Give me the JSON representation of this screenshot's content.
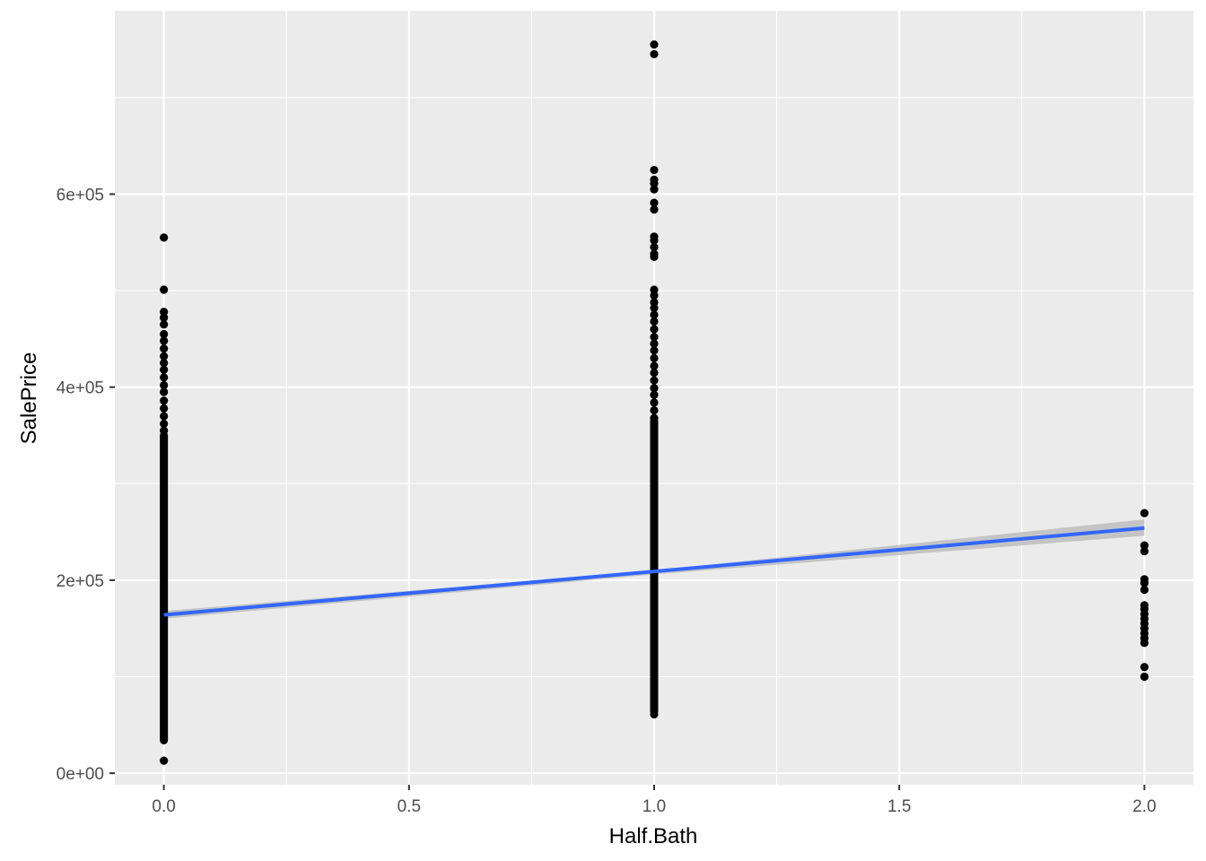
{
  "chart_data": {
    "type": "scatter",
    "xlabel": "Half.Bath",
    "ylabel": "SalePrice",
    "xlim": [
      -0.1,
      2.1
    ],
    "ylim": [
      -12000,
      790000
    ],
    "x_ticks": [
      0.0,
      0.5,
      1.0,
      1.5,
      2.0
    ],
    "x_tick_labels": [
      "0.0",
      "0.5",
      "1.0",
      "1.5",
      "2.0"
    ],
    "y_ticks": [
      0,
      200000,
      400000,
      600000
    ],
    "y_tick_labels": [
      "0e+00",
      "2e+05",
      "4e+05",
      "6e+05"
    ],
    "grid": true,
    "colors": {
      "panel": "#ebebeb",
      "grid": "#ffffff",
      "points": "#000000",
      "line": "#3366ff",
      "ribbon": "#bdbdbd"
    },
    "points": [
      {
        "x": 0,
        "y": 555000
      },
      {
        "x": 0,
        "y": 501000
      },
      {
        "x": 0,
        "y": 478000
      },
      {
        "x": 0,
        "y": 472000
      },
      {
        "x": 0,
        "y": 465000
      },
      {
        "x": 0,
        "y": 455000
      },
      {
        "x": 0,
        "y": 448000
      },
      {
        "x": 0,
        "y": 440000
      },
      {
        "x": 0,
        "y": 432000
      },
      {
        "x": 0,
        "y": 425000
      },
      {
        "x": 0,
        "y": 418000
      },
      {
        "x": 0,
        "y": 410000
      },
      {
        "x": 0,
        "y": 402000
      },
      {
        "x": 0,
        "y": 395000
      },
      {
        "x": 0,
        "y": 386000
      },
      {
        "x": 0,
        "y": 378000
      },
      {
        "x": 0,
        "y": 370000
      },
      {
        "x": 0,
        "y": 362000
      },
      {
        "x": 0,
        "y": 355000
      },
      {
        "x": 0,
        "y": 13000
      },
      {
        "x": 1,
        "y": 755000
      },
      {
        "x": 1,
        "y": 745000
      },
      {
        "x": 1,
        "y": 625000
      },
      {
        "x": 1,
        "y": 615000
      },
      {
        "x": 1,
        "y": 611000
      },
      {
        "x": 1,
        "y": 605000
      },
      {
        "x": 1,
        "y": 591000
      },
      {
        "x": 1,
        "y": 584000
      },
      {
        "x": 1,
        "y": 556000
      },
      {
        "x": 1,
        "y": 552000
      },
      {
        "x": 1,
        "y": 545000
      },
      {
        "x": 1,
        "y": 538000
      },
      {
        "x": 1,
        "y": 535000
      },
      {
        "x": 1,
        "y": 501000
      },
      {
        "x": 1,
        "y": 495000
      },
      {
        "x": 1,
        "y": 488000
      },
      {
        "x": 1,
        "y": 482000
      },
      {
        "x": 1,
        "y": 475000
      },
      {
        "x": 1,
        "y": 468000
      },
      {
        "x": 1,
        "y": 460000
      },
      {
        "x": 1,
        "y": 452000
      },
      {
        "x": 1,
        "y": 445000
      },
      {
        "x": 1,
        "y": 438000
      },
      {
        "x": 1,
        "y": 430000
      },
      {
        "x": 1,
        "y": 422000
      },
      {
        "x": 1,
        "y": 415000
      },
      {
        "x": 1,
        "y": 407000
      },
      {
        "x": 1,
        "y": 399000
      },
      {
        "x": 1,
        "y": 392000
      },
      {
        "x": 1,
        "y": 384000
      },
      {
        "x": 1,
        "y": 376000
      },
      {
        "x": 1,
        "y": 368000
      },
      {
        "x": 1,
        "y": 61000
      },
      {
        "x": 2,
        "y": 269500
      },
      {
        "x": 2,
        "y": 236000
      },
      {
        "x": 2,
        "y": 230000
      },
      {
        "x": 2,
        "y": 201000
      },
      {
        "x": 2,
        "y": 197000
      },
      {
        "x": 2,
        "y": 190000
      },
      {
        "x": 2,
        "y": 174000
      },
      {
        "x": 2,
        "y": 170000
      },
      {
        "x": 2,
        "y": 165000
      },
      {
        "x": 2,
        "y": 160000
      },
      {
        "x": 2,
        "y": 155000
      },
      {
        "x": 2,
        "y": 150000
      },
      {
        "x": 2,
        "y": 145000
      },
      {
        "x": 2,
        "y": 140000
      },
      {
        "x": 2,
        "y": 135000
      },
      {
        "x": 2,
        "y": 110000
      },
      {
        "x": 2,
        "y": 100000
      }
    ],
    "dense_ranges": [
      {
        "x": 0,
        "y_min": 34000,
        "y_max": 350000
      },
      {
        "x": 1,
        "y_min": 64000,
        "y_max": 365000
      }
    ],
    "trend_line": {
      "x": [
        0,
        2
      ],
      "y": [
        164000,
        254000
      ]
    },
    "confidence_band": {
      "x": [
        0,
        1,
        2
      ],
      "lower": [
        160000,
        206000,
        246000
      ],
      "upper": [
        168000,
        210000,
        263000
      ]
    }
  }
}
